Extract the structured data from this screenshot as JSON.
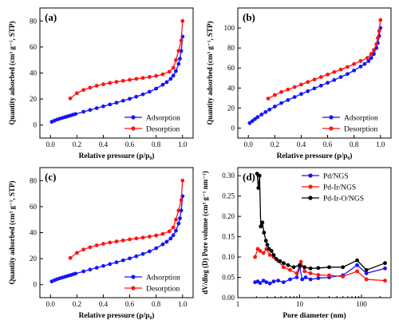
{
  "colors": {
    "blue": "#1414ff",
    "red": "#ff1414",
    "black": "#000000"
  },
  "chart_data": [
    {
      "type": "line",
      "panel_label": "(a)",
      "xlabel": "Relative pressure (p/p₀)",
      "ylabel": "Quantity adsorbed (cm³ g⁻¹, STP)",
      "xlim": [
        -0.08,
        1.08
      ],
      "ylim": [
        -10,
        90
      ],
      "xticks": [
        0.0,
        0.2,
        0.4,
        0.6,
        0.8,
        1.0
      ],
      "xtick_labels": [
        "0.0",
        "0.2",
        "0.4",
        "0.6",
        "0.8",
        "1.0"
      ],
      "yticks": [
        0,
        20,
        40,
        60,
        80
      ],
      "ytick_labels": [
        "0",
        "20",
        "40",
        "60",
        "80"
      ],
      "legend_position": "bottom-right",
      "series": [
        {
          "name": "Adsorption",
          "color": "blue",
          "marker": "circle",
          "x": [
            0.01,
            0.03,
            0.05,
            0.07,
            0.09,
            0.11,
            0.13,
            0.15,
            0.17,
            0.19,
            0.25,
            0.3,
            0.35,
            0.4,
            0.45,
            0.5,
            0.55,
            0.6,
            0.65,
            0.7,
            0.75,
            0.8,
            0.85,
            0.88,
            0.91,
            0.93,
            0.95,
            0.97,
            0.98,
            0.99,
            1.0
          ],
          "y": [
            2.5,
            3.4,
            4.2,
            4.9,
            5.5,
            6.1,
            6.7,
            7.3,
            7.9,
            8.5,
            10.2,
            11.6,
            13.0,
            14.4,
            15.8,
            17.2,
            18.7,
            20.2,
            21.8,
            23.6,
            25.6,
            28.0,
            31.0,
            33.0,
            35.5,
            38.0,
            41.5,
            47.0,
            51.0,
            57.0,
            68.0
          ]
        },
        {
          "name": "Desorption",
          "color": "red",
          "marker": "circle",
          "x": [
            1.0,
            0.99,
            0.97,
            0.95,
            0.93,
            0.9,
            0.85,
            0.8,
            0.75,
            0.7,
            0.65,
            0.6,
            0.55,
            0.5,
            0.45,
            0.4,
            0.35,
            0.3,
            0.25,
            0.2,
            0.15
          ],
          "y": [
            80.0,
            65.0,
            57.0,
            50.0,
            44.0,
            41.0,
            39.0,
            37.8,
            37.0,
            36.2,
            35.5,
            34.8,
            34.0,
            33.2,
            32.4,
            31.4,
            30.2,
            28.8,
            27.0,
            24.5,
            20.5
          ]
        }
      ]
    },
    {
      "type": "line",
      "panel_label": "(b)",
      "xlabel": "Relative pressure (p/p₀)",
      "ylabel": "Quantity adsorbed (cm³ g⁻¹, STP)",
      "xlim": [
        -0.08,
        1.08
      ],
      "ylim": [
        -10,
        120
      ],
      "xticks": [
        0.0,
        0.2,
        0.4,
        0.6,
        0.8,
        1.0
      ],
      "xtick_labels": [
        "0.0",
        "0.2",
        "0.4",
        "0.6",
        "0.8",
        "1.0"
      ],
      "yticks": [
        0,
        20,
        40,
        60,
        80,
        100
      ],
      "ytick_labels": [
        "0",
        "20",
        "40",
        "60",
        "80",
        "100"
      ],
      "legend_position": "bottom-right",
      "series": [
        {
          "name": "Adsorption",
          "color": "blue",
          "marker": "circle",
          "x": [
            0.01,
            0.03,
            0.05,
            0.07,
            0.1,
            0.13,
            0.16,
            0.2,
            0.25,
            0.3,
            0.35,
            0.4,
            0.45,
            0.5,
            0.55,
            0.6,
            0.65,
            0.7,
            0.75,
            0.8,
            0.85,
            0.88,
            0.91,
            0.93,
            0.95,
            0.97,
            0.98,
            0.99,
            1.0
          ],
          "y": [
            5.0,
            7.0,
            9.0,
            11.0,
            13.5,
            16.0,
            18.5,
            21.5,
            25.0,
            28.0,
            31.0,
            34.0,
            36.8,
            39.6,
            42.4,
            45.2,
            48.0,
            51.0,
            54.0,
            57.5,
            61.5,
            64.0,
            67.0,
            70.0,
            74.0,
            80.0,
            85.0,
            92.0,
            100.0
          ]
        },
        {
          "name": "Desorption",
          "color": "red",
          "marker": "circle",
          "x": [
            1.0,
            0.99,
            0.98,
            0.97,
            0.95,
            0.93,
            0.9,
            0.85,
            0.8,
            0.75,
            0.7,
            0.65,
            0.6,
            0.55,
            0.5,
            0.45,
            0.4,
            0.35,
            0.3,
            0.25,
            0.2,
            0.15
          ],
          "y": [
            108.0,
            97.0,
            90.0,
            84.0,
            78.0,
            74.0,
            70.0,
            67.0,
            64.0,
            61.0,
            58.5,
            56.0,
            53.5,
            51.0,
            48.5,
            46.0,
            43.5,
            41.0,
            38.5,
            36.0,
            33.0,
            29.5
          ]
        }
      ]
    },
    {
      "type": "line",
      "panel_label": "(c)",
      "xlabel": "Relative pressure (p/p₀)",
      "ylabel": "Quantity adsorbed (cm³ g⁻¹, STP)",
      "xlim": [
        -0.08,
        1.08
      ],
      "ylim": [
        -10,
        90
      ],
      "xticks": [
        0.0,
        0.2,
        0.4,
        0.6,
        0.8,
        1.0
      ],
      "xtick_labels": [
        "0.0",
        "0.2",
        "0.4",
        "0.6",
        "0.8",
        "1.0"
      ],
      "yticks": [
        0,
        20,
        40,
        60,
        80
      ],
      "ytick_labels": [
        "0",
        "20",
        "40",
        "60",
        "80"
      ],
      "legend_position": "bottom-right",
      "series": [
        {
          "name": "Adsorption",
          "color": "blue",
          "marker": "circle",
          "x": [
            0.01,
            0.03,
            0.05,
            0.07,
            0.09,
            0.11,
            0.13,
            0.15,
            0.17,
            0.19,
            0.25,
            0.3,
            0.35,
            0.4,
            0.45,
            0.5,
            0.55,
            0.6,
            0.65,
            0.7,
            0.75,
            0.8,
            0.85,
            0.88,
            0.91,
            0.93,
            0.95,
            0.97,
            0.98,
            0.99,
            1.0
          ],
          "y": [
            2.5,
            3.4,
            4.2,
            4.9,
            5.5,
            6.1,
            6.7,
            7.3,
            7.9,
            8.5,
            10.2,
            11.6,
            13.0,
            14.4,
            15.8,
            17.2,
            18.7,
            20.2,
            21.8,
            23.6,
            25.6,
            28.0,
            31.0,
            33.0,
            35.5,
            38.0,
            41.5,
            47.0,
            51.0,
            57.0,
            68.0
          ]
        },
        {
          "name": "Desorption",
          "color": "red",
          "marker": "circle",
          "x": [
            1.0,
            0.99,
            0.97,
            0.95,
            0.93,
            0.9,
            0.85,
            0.8,
            0.75,
            0.7,
            0.65,
            0.6,
            0.55,
            0.5,
            0.45,
            0.4,
            0.35,
            0.3,
            0.25,
            0.2,
            0.15
          ],
          "y": [
            80.0,
            65.0,
            57.0,
            50.0,
            44.0,
            41.0,
            39.0,
            37.8,
            37.0,
            36.2,
            35.5,
            34.8,
            34.0,
            33.2,
            32.4,
            31.4,
            30.2,
            28.8,
            27.0,
            24.5,
            20.5
          ]
        }
      ]
    },
    {
      "type": "line",
      "panel_label": "(d)",
      "xlabel": "Pore diameter (nm)",
      "ylabel": "dV/dlog (D) Pore volume (cm³ g⁻¹ nm⁻¹)",
      "xscale": "log",
      "xlim": [
        1,
        300
      ],
      "ylim": [
        0.0,
        0.32
      ],
      "xticks": [
        1,
        10,
        100
      ],
      "xtick_labels": [
        "1",
        "10",
        "100"
      ],
      "yticks": [
        0.0,
        0.05,
        0.1,
        0.15,
        0.2,
        0.25,
        0.3
      ],
      "ytick_labels": [
        "0.00",
        "0.05",
        "0.10",
        "0.15",
        "0.20",
        "0.25",
        "0.30"
      ],
      "legend_position": "top-right",
      "series": [
        {
          "name": "Pd/NGS",
          "color": "blue",
          "marker": "circle",
          "x": [
            1.9,
            2.1,
            2.3,
            2.6,
            2.9,
            3.3,
            3.8,
            4.5,
            5.5,
            7.0,
            9.0,
            10.0,
            11.0,
            12.5,
            15.0,
            20.0,
            30.0,
            50.0,
            85.0,
            120.0,
            240.0
          ],
          "y": [
            0.038,
            0.04,
            0.036,
            0.042,
            0.038,
            0.035,
            0.04,
            0.042,
            0.038,
            0.045,
            0.05,
            0.075,
            0.045,
            0.05,
            0.045,
            0.048,
            0.05,
            0.055,
            0.08,
            0.06,
            0.072
          ]
        },
        {
          "name": "Pd-Ir/NGS",
          "color": "red",
          "marker": "circle",
          "x": [
            1.9,
            2.1,
            2.3,
            2.6,
            2.9,
            3.3,
            3.8,
            4.5,
            5.5,
            7.0,
            9.0,
            10.5,
            12.0,
            15.0,
            20.0,
            30.0,
            50.0,
            85.0,
            120.0,
            240.0
          ],
          "y": [
            0.1,
            0.12,
            0.115,
            0.11,
            0.12,
            0.105,
            0.1,
            0.09,
            0.075,
            0.068,
            0.06,
            0.088,
            0.065,
            0.06,
            0.056,
            0.055,
            0.052,
            0.065,
            0.045,
            0.042
          ]
        },
        {
          "name": "Pd-Ir-O/NGS",
          "color": "black",
          "marker": "circle",
          "x": [
            2.05,
            2.15,
            2.25,
            2.35,
            2.5,
            2.65,
            2.85,
            3.0,
            3.2,
            3.5,
            3.8,
            4.2,
            4.8,
            5.5,
            6.5,
            8.0,
            10.0,
            12.0,
            15.0,
            20.0,
            30.0,
            50.0,
            85.0,
            120.0,
            240.0
          ],
          "y": [
            0.305,
            0.27,
            0.3,
            0.175,
            0.185,
            0.16,
            0.14,
            0.13,
            0.12,
            0.115,
            0.105,
            0.095,
            0.09,
            0.085,
            0.08,
            0.075,
            0.08,
            0.075,
            0.072,
            0.073,
            0.075,
            0.075,
            0.092,
            0.068,
            0.085
          ]
        }
      ]
    }
  ]
}
